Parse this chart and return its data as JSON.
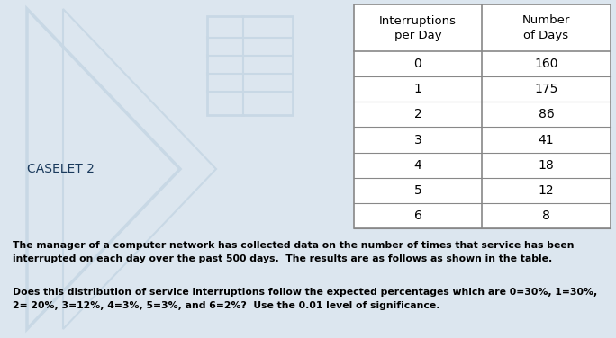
{
  "background_color": "#dce6ef",
  "caselet_label": "CASELET 2",
  "caselet_fontsize": 10,
  "table_col1_header": "Interruptions\nper Day",
  "table_col2_header": "Number\nof Days",
  "interruptions": [
    "0",
    "1",
    "2",
    "3",
    "4",
    "5",
    "6"
  ],
  "num_days": [
    "160",
    "175",
    "86",
    "41",
    "18",
    "12",
    "8"
  ],
  "paragraph1": "The manager of a computer network has collected data on the number of times that service has been\ninterrupted on each day over the past 500 days.  The results are as follows as shown in the table.",
  "paragraph2": "Does this distribution of service interruptions follow the expected percentages which are 0=30%, 1=30%,\n2= 20%, 3=12%, 4=3%, 5=3%, and 6=2%?  Use the 0.01 level of significance.",
  "text_fontsize": 7.8,
  "table_border_color": "#888888",
  "text_color": "#000000",
  "watermark_shape_color": "#c8d8e5",
  "table_bg": "#ffffff"
}
